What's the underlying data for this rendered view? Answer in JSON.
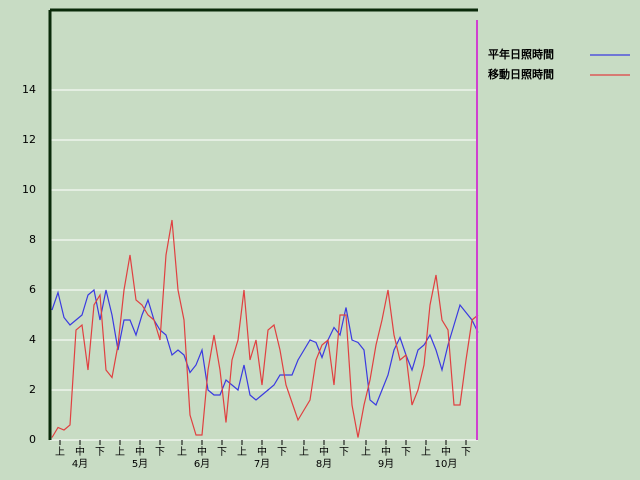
{
  "chart_data": {
    "type": "line",
    "x": [
      1,
      4,
      7,
      10,
      13,
      16,
      19,
      22,
      25,
      28,
      31,
      34,
      37,
      40,
      43,
      46,
      49,
      52,
      55,
      58,
      61,
      64,
      67,
      70,
      73,
      76,
      79,
      82,
      85,
      88,
      91,
      94,
      97,
      100,
      103,
      106,
      109,
      112,
      115,
      118,
      121,
      124,
      127,
      130,
      133,
      136,
      139,
      142,
      145,
      148,
      151,
      154,
      157,
      160,
      163,
      166,
      169,
      172,
      175,
      178,
      181,
      184,
      187,
      190,
      193,
      196,
      199,
      202,
      205,
      208,
      211,
      214
    ],
    "series": [
      {
        "name": "平年日照時間",
        "color": "#3a3ae0",
        "values": [
          5.2,
          5.9,
          4.9,
          4.6,
          4.8,
          5.0,
          5.8,
          6.0,
          4.8,
          6.0,
          5.0,
          3.6,
          4.8,
          4.8,
          4.2,
          5.0,
          5.6,
          4.8,
          4.4,
          4.2,
          3.4,
          3.6,
          3.4,
          2.7,
          3.0,
          3.6,
          2.0,
          1.8,
          1.8,
          2.4,
          2.2,
          2.0,
          3.0,
          1.8,
          1.6,
          1.8,
          2.0,
          2.2,
          2.6,
          2.6,
          2.6,
          3.2,
          3.6,
          4.0,
          3.9,
          3.3,
          4.0,
          4.5,
          4.2,
          5.3,
          4.0,
          3.9,
          3.6,
          1.6,
          1.4,
          2.0,
          2.6,
          3.6,
          4.1,
          3.4,
          2.8,
          3.6,
          3.8,
          4.2,
          3.6,
          2.8,
          3.8,
          4.6,
          5.4,
          5.1,
          4.8,
          4.3
        ]
      },
      {
        "name": "移動日照時間",
        "color": "#e04040",
        "values": [
          0.1,
          0.5,
          0.4,
          0.6,
          4.4,
          4.6,
          2.8,
          5.4,
          5.8,
          2.8,
          2.5,
          3.8,
          6.0,
          7.4,
          5.6,
          5.4,
          5.0,
          4.8,
          4.0,
          7.4,
          8.8,
          6.0,
          4.8,
          1.0,
          0.2,
          0.2,
          2.8,
          4.2,
          2.8,
          0.7,
          3.2,
          4.0,
          6.0,
          3.2,
          4.0,
          2.2,
          4.4,
          4.6,
          3.6,
          2.2,
          1.5,
          0.8,
          1.2,
          1.6,
          3.2,
          3.8,
          4.0,
          2.2,
          5.0,
          5.0,
          1.4,
          0.1,
          1.4,
          2.4,
          3.8,
          4.8,
          6.0,
          4.2,
          3.2,
          3.4,
          1.4,
          2.0,
          3.0,
          5.4,
          6.6,
          4.8,
          4.4,
          1.4,
          1.4,
          3.2,
          4.8,
          5.0
        ]
      }
    ],
    "xlim": [
      0,
      214
    ],
    "xticks": [
      {
        "value": 5,
        "label": "上"
      },
      {
        "value": 15,
        "label": "中"
      },
      {
        "value": 25,
        "label": "下"
      },
      {
        "value": 35,
        "label": "上"
      },
      {
        "value": 45,
        "label": "中"
      },
      {
        "value": 55,
        "label": "下"
      },
      {
        "value": 66,
        "label": "上"
      },
      {
        "value": 76,
        "label": "中"
      },
      {
        "value": 86,
        "label": "下"
      },
      {
        "value": 96,
        "label": "上"
      },
      {
        "value": 106,
        "label": "中"
      },
      {
        "value": 116,
        "label": "下"
      },
      {
        "value": 127,
        "label": "上"
      },
      {
        "value": 137,
        "label": "中"
      },
      {
        "value": 147,
        "label": "下"
      },
      {
        "value": 158,
        "label": "上"
      },
      {
        "value": 168,
        "label": "中"
      },
      {
        "value": 178,
        "label": "下"
      },
      {
        "value": 188,
        "label": "上"
      },
      {
        "value": 198,
        "label": "中"
      },
      {
        "value": 208,
        "label": "下"
      }
    ],
    "month_ticks": [
      {
        "value": 15,
        "label": "4月"
      },
      {
        "value": 45,
        "label": "5月"
      },
      {
        "value": 76,
        "label": "6月"
      },
      {
        "value": 106,
        "label": "7月"
      },
      {
        "value": 137,
        "label": "8月"
      },
      {
        "value": 168,
        "label": "9月"
      },
      {
        "value": 198,
        "label": "10月"
      }
    ],
    "ylim": [
      0,
      17.2
    ],
    "yticks": [
      0,
      2,
      4,
      6,
      8,
      10,
      12,
      14
    ],
    "grid": true
  }
}
